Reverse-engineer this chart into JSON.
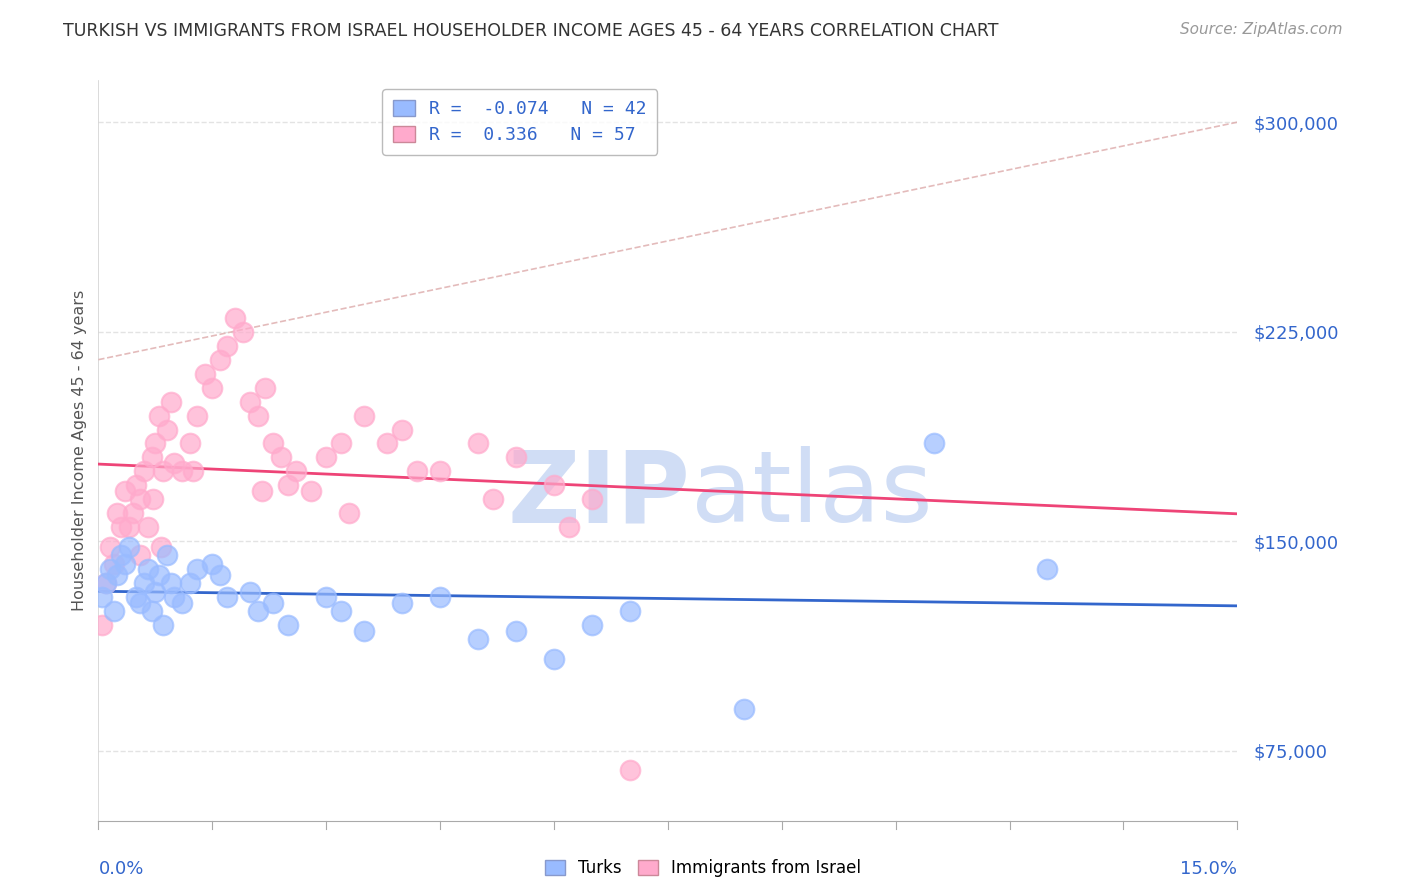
{
  "title": "TURKISH VS IMMIGRANTS FROM ISRAEL HOUSEHOLDER INCOME AGES 45 - 64 YEARS CORRELATION CHART",
  "source": "Source: ZipAtlas.com",
  "ylabel": "Householder Income Ages 45 - 64 years",
  "y_ticks": [
    75000,
    150000,
    225000,
    300000
  ],
  "y_tick_labels": [
    "$75,000",
    "$150,000",
    "$225,000",
    "$300,000"
  ],
  "xmin": 0.0,
  "xmax": 15.0,
  "ymin": 50000,
  "ymax": 315000,
  "turks_R": -0.074,
  "turks_N": 42,
  "israel_R": 0.336,
  "israel_N": 57,
  "turks_color": "#99bbff",
  "israel_color": "#ffaacc",
  "turks_line_color": "#3366cc",
  "israel_line_color": "#ee4477",
  "dash_line_color": "#ddaaaa",
  "watermark_color": "#d0ddf5",
  "background_color": "#ffffff",
  "grid_color": "#dddddd",
  "title_color": "#333333",
  "axis_label_color": "#3366cc",
  "turks_x": [
    0.05,
    0.1,
    0.15,
    0.2,
    0.25,
    0.3,
    0.35,
    0.4,
    0.5,
    0.55,
    0.6,
    0.65,
    0.7,
    0.75,
    0.8,
    0.85,
    0.9,
    0.95,
    1.0,
    1.1,
    1.2,
    1.3,
    1.5,
    1.6,
    1.7,
    2.0,
    2.1,
    2.3,
    2.5,
    3.0,
    3.2,
    3.5,
    4.0,
    4.5,
    5.0,
    5.5,
    6.0,
    6.5,
    7.0,
    8.5,
    11.0,
    12.5
  ],
  "turks_y": [
    130000,
    135000,
    140000,
    125000,
    138000,
    145000,
    142000,
    148000,
    130000,
    128000,
    135000,
    140000,
    125000,
    132000,
    138000,
    120000,
    145000,
    135000,
    130000,
    128000,
    135000,
    140000,
    142000,
    138000,
    130000,
    132000,
    125000,
    128000,
    120000,
    130000,
    125000,
    118000,
    128000,
    130000,
    115000,
    118000,
    108000,
    120000,
    125000,
    90000,
    185000,
    140000
  ],
  "israel_x": [
    0.05,
    0.1,
    0.15,
    0.2,
    0.25,
    0.3,
    0.35,
    0.4,
    0.5,
    0.55,
    0.6,
    0.7,
    0.75,
    0.8,
    0.85,
    0.9,
    0.95,
    1.0,
    1.1,
    1.2,
    1.3,
    1.4,
    1.5,
    1.6,
    1.7,
    1.8,
    1.9,
    2.0,
    2.1,
    2.2,
    2.3,
    2.5,
    2.6,
    2.8,
    3.0,
    3.2,
    3.5,
    3.8,
    4.0,
    4.5,
    5.0,
    5.5,
    6.0,
    6.5,
    2.4,
    1.25,
    0.45,
    0.55,
    0.65,
    0.72,
    0.82,
    2.15,
    3.3,
    4.2,
    5.2,
    6.2,
    7.0
  ],
  "israel_y": [
    120000,
    135000,
    148000,
    142000,
    160000,
    155000,
    168000,
    155000,
    170000,
    165000,
    175000,
    180000,
    185000,
    195000,
    175000,
    190000,
    200000,
    178000,
    175000,
    185000,
    195000,
    210000,
    205000,
    215000,
    220000,
    230000,
    225000,
    200000,
    195000,
    205000,
    185000,
    170000,
    175000,
    168000,
    180000,
    185000,
    195000,
    185000,
    190000,
    175000,
    185000,
    180000,
    170000,
    165000,
    180000,
    175000,
    160000,
    145000,
    155000,
    165000,
    148000,
    168000,
    160000,
    175000,
    165000,
    155000,
    68000
  ]
}
